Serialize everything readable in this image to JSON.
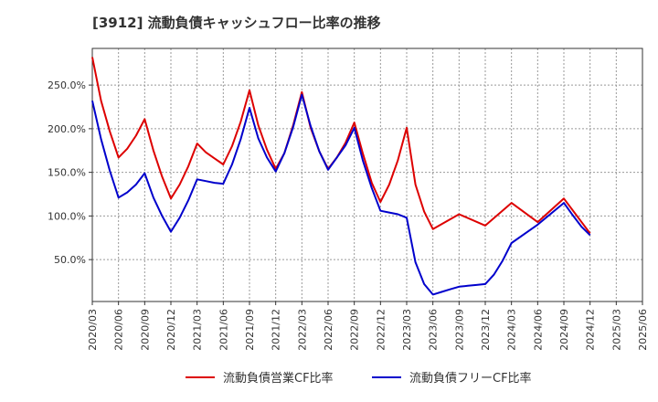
{
  "chart_data": {
    "type": "line",
    "title": "[3912]  流動負債キャッシュフロー比率の推移",
    "x_ticks": [
      "2020/03",
      "2020/06",
      "2020/09",
      "2020/12",
      "2021/03",
      "2021/06",
      "2021/09",
      "2021/12",
      "2022/03",
      "2022/06",
      "2022/09",
      "2022/12",
      "2023/03",
      "2023/06",
      "2023/09",
      "2023/12",
      "2024/03",
      "2024/06",
      "2024/09",
      "2024/12",
      "2025/03",
      "2025/06"
    ],
    "y_ticks": [
      "50.0%",
      "100.0%",
      "150.0%",
      "200.0%",
      "250.0%"
    ],
    "y_tick_values": [
      50,
      100,
      150,
      200,
      250
    ],
    "xlim": [
      "2020/03",
      "2025/06"
    ],
    "ylim": [
      2,
      292
    ],
    "grid": true,
    "legend_position": "bottom",
    "series": [
      {
        "name": "流動負債営業CF比率",
        "color": "#dd0000",
        "x": [
          "2020/03",
          "2020/04",
          "2020/05",
          "2020/06",
          "2020/07",
          "2020/08",
          "2020/09",
          "2020/10",
          "2020/11",
          "2020/12",
          "2021/01",
          "2021/02",
          "2021/03",
          "2021/04",
          "2021/05",
          "2021/06",
          "2021/07",
          "2021/08",
          "2021/09",
          "2021/10",
          "2021/11",
          "2021/12",
          "2022/01",
          "2022/02",
          "2022/03",
          "2022/04",
          "2022/05",
          "2022/06",
          "2022/07",
          "2022/08",
          "2022/09",
          "2022/10",
          "2022/11",
          "2022/12",
          "2023/01",
          "2023/02",
          "2023/03",
          "2023/04",
          "2023/05",
          "2023/06",
          "2023/09",
          "2023/12",
          "2024/03",
          "2024/06",
          "2024/09",
          "2024/12"
        ],
        "y": [
          282,
          232,
          197,
          167,
          177,
          192,
          211,
          175,
          145,
          120,
          136,
          157,
          183,
          173,
          166,
          159,
          180,
          208,
          244,
          204,
          176,
          154,
          172,
          204,
          242,
          201,
          174,
          154,
          167,
          184,
          207,
          171,
          138,
          116,
          136,
          164,
          201,
          136,
          105,
          85,
          102,
          89,
          115,
          93,
          120,
          80
        ]
      },
      {
        "name": "流動負債フリーCF比率",
        "color": "#0000cc",
        "x": [
          "2020/03",
          "2020/04",
          "2020/05",
          "2020/06",
          "2020/07",
          "2020/08",
          "2020/09",
          "2020/10",
          "2020/11",
          "2020/12",
          "2021/01",
          "2021/02",
          "2021/03",
          "2021/04",
          "2021/05",
          "2021/06",
          "2021/07",
          "2021/08",
          "2021/09",
          "2021/10",
          "2021/11",
          "2021/12",
          "2022/01",
          "2022/02",
          "2022/03",
          "2022/04",
          "2022/05",
          "2022/06",
          "2022/07",
          "2022/08",
          "2022/09",
          "2022/10",
          "2022/11",
          "2022/12",
          "2023/01",
          "2023/02",
          "2023/03",
          "2023/04",
          "2023/05",
          "2023/06",
          "2023/07",
          "2023/08",
          "2023/09",
          "2023/10",
          "2023/11",
          "2023/12",
          "2024/01",
          "2024/02",
          "2024/03",
          "2024/06",
          "2024/09",
          "2024/10",
          "2024/11",
          "2024/12"
        ],
        "y": [
          232,
          188,
          152,
          121,
          127,
          136,
          149,
          121,
          100,
          82,
          98,
          118,
          142,
          140,
          138,
          137,
          159,
          188,
          224,
          189,
          167,
          151,
          172,
          202,
          239,
          203,
          174,
          153,
          167,
          181,
          201,
          163,
          132,
          106,
          104,
          102,
          98,
          47,
          22,
          10,
          13,
          16,
          19,
          20,
          21,
          22,
          33,
          49,
          69,
          90,
          115,
          101,
          88,
          78
        ]
      }
    ]
  }
}
